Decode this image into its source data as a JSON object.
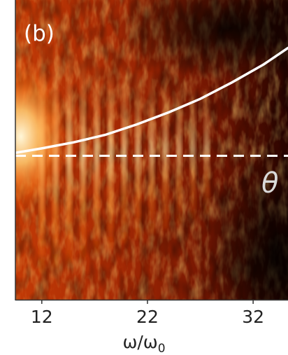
{
  "chart_data": {
    "type": "heatmap",
    "panel_label": "(b)",
    "xlabel": "ω/ω",
    "xlabel_subscript": "0",
    "x_ticks": [
      12,
      22,
      32
    ],
    "xlim": [
      9.5,
      35.3
    ],
    "colormap": "hot",
    "stripe_centers": [
      12,
      13.3,
      14.6,
      15.9,
      17.2,
      18.5,
      19.8,
      21.1,
      22.4,
      23.7,
      25,
      26.3,
      27.6
    ],
    "curve": {
      "style": "solid",
      "color": "#ffffff",
      "label_note": "",
      "x": [
        9.5,
        12,
        15,
        18,
        21,
        24,
        27,
        30,
        33,
        35.3
      ],
      "y_frac": [
        0.49,
        0.505,
        0.525,
        0.55,
        0.585,
        0.625,
        0.67,
        0.725,
        0.785,
        0.84
      ]
    },
    "dashed_line": {
      "style": "dashed",
      "color": "#ffffff",
      "y_frac": 0.48
    },
    "annotation_symbol": "θ"
  }
}
